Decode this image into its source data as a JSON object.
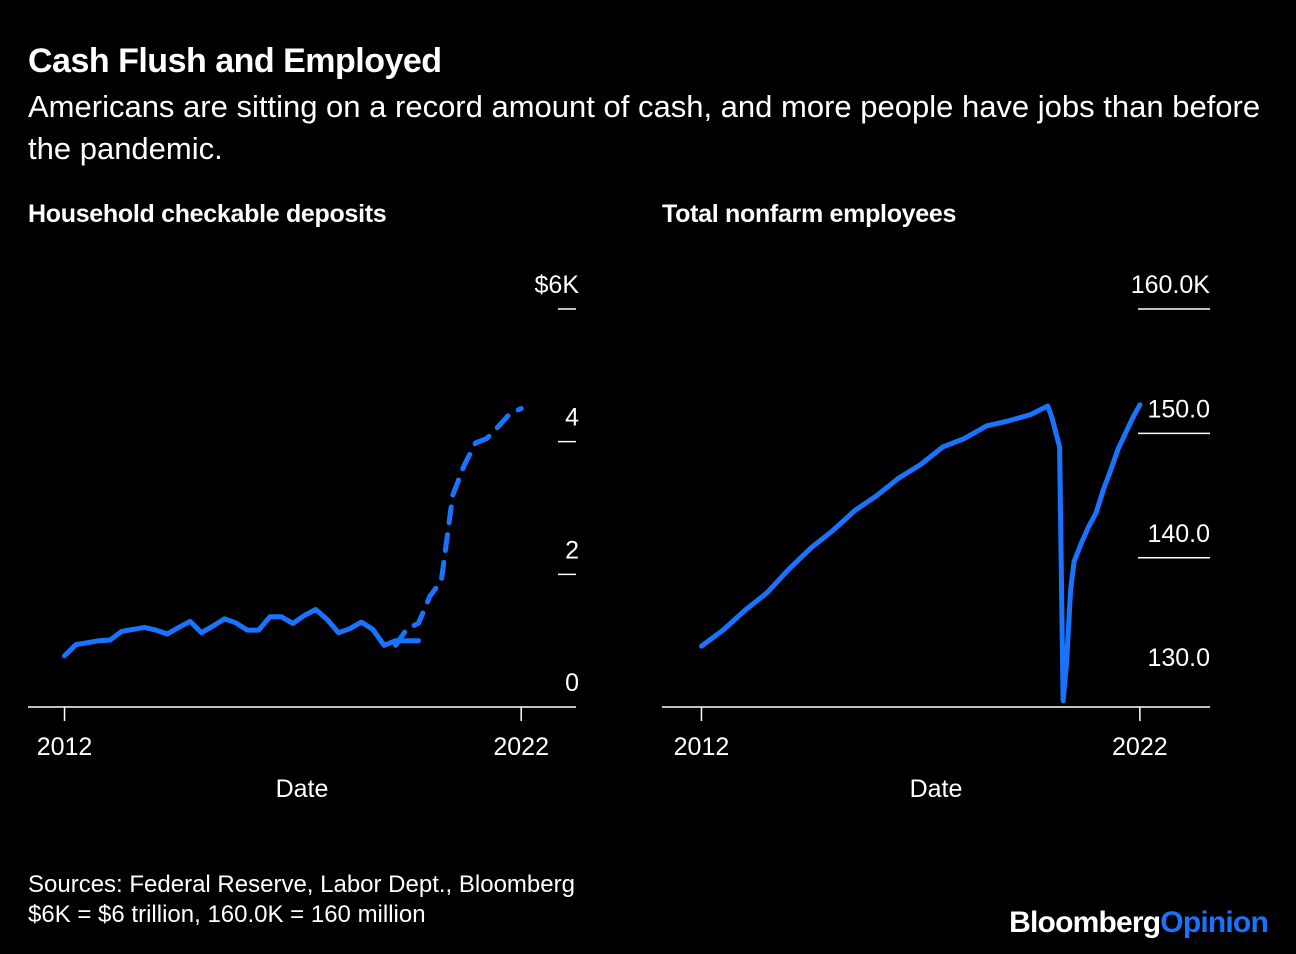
{
  "title": "Cash Flush and Employed",
  "subtitle": "Americans are sitting on a record amount of cash, and more people have jobs than before the pandemic.",
  "footer": {
    "sources": "Sources: Federal Reserve, Labor Dept., Bloomberg",
    "note": "$6K = $6 trillion, 160.0K = 160 million"
  },
  "brand": {
    "bloomberg": "Bloomberg",
    "opinion": "Opinion"
  },
  "colors": {
    "background": "#000000",
    "line": "#1a73ff",
    "text": "#ffffff"
  },
  "chart_data": [
    {
      "type": "line",
      "title": "Household checkable deposits",
      "xlabel": "Date",
      "ylabel": "",
      "xlim": [
        2011.2,
        2023.2
      ],
      "ylim": [
        0,
        6
      ],
      "x_ticks": [
        2012,
        2022
      ],
      "x_tick_labels": [
        "2012",
        "2022"
      ],
      "y_ticks": [
        0,
        2,
        4,
        6
      ],
      "y_tick_labels": [
        "0",
        "2",
        "4",
        "$6K"
      ],
      "grid": false,
      "series": [
        {
          "style": "solid",
          "x": [
            2012.0,
            2012.25,
            2012.5,
            2012.75,
            2013.0,
            2013.25,
            2013.5,
            2013.75,
            2014.0,
            2014.25,
            2014.5,
            2014.75,
            2015.0,
            2015.25,
            2015.5,
            2015.75,
            2016.0,
            2016.25,
            2016.5,
            2016.75,
            2017.0,
            2017.25,
            2017.5,
            2017.75,
            2018.0,
            2018.25,
            2018.5,
            2018.75,
            2019.0,
            2019.25,
            2019.5,
            2019.75
          ],
          "y": [
            0.77,
            0.94,
            0.97,
            1.0,
            1.01,
            1.14,
            1.17,
            1.2,
            1.16,
            1.1,
            1.2,
            1.29,
            1.12,
            1.22,
            1.33,
            1.27,
            1.16,
            1.16,
            1.36,
            1.36,
            1.26,
            1.38,
            1.47,
            1.32,
            1.12,
            1.18,
            1.28,
            1.17,
            0.93,
            1.0,
            1.0,
            1.0
          ]
        },
        {
          "style": "dashed",
          "x": [
            2019.25,
            2019.5,
            2019.75,
            2020.0,
            2020.25,
            2020.5,
            2020.75,
            2021.0,
            2021.25,
            2021.5,
            2021.75,
            2022.0
          ],
          "y": [
            0.93,
            1.18,
            1.26,
            1.67,
            1.9,
            3.19,
            3.64,
            3.98,
            4.05,
            4.23,
            4.42,
            4.5
          ]
        }
      ]
    },
    {
      "type": "line",
      "title": "Total nonfarm employees",
      "xlabel": "Date",
      "ylabel": "",
      "xlim": [
        2011.1,
        2023.6
      ],
      "ylim": [
        128,
        160
      ],
      "x_ticks": [
        2012,
        2022
      ],
      "x_tick_labels": [
        "2012",
        "2022"
      ],
      "y_ticks": [
        130,
        140,
        150,
        160
      ],
      "y_tick_labels": [
        "130.0",
        "140.0",
        "150.0",
        "160.0K"
      ],
      "grid": false,
      "series": [
        {
          "style": "solid",
          "x": [
            2012.0,
            2012.5,
            2013.0,
            2013.5,
            2014.0,
            2014.5,
            2015.0,
            2015.5,
            2016.0,
            2016.5,
            2017.0,
            2017.5,
            2018.0,
            2018.5,
            2019.0,
            2019.5,
            2019.9,
            2020.0,
            2020.17,
            2020.25,
            2020.33,
            2020.42,
            2020.5,
            2020.67,
            2020.83,
            2021.0,
            2021.17,
            2021.33,
            2021.5,
            2021.67,
            2021.83,
            2022.0
          ],
          "y": [
            132.9,
            134.2,
            135.8,
            137.2,
            139.1,
            140.8,
            142.2,
            143.8,
            145.0,
            146.4,
            147.5,
            148.9,
            149.6,
            150.6,
            151.0,
            151.5,
            152.2,
            151.2,
            148.9,
            128.5,
            131.6,
            137.4,
            139.7,
            141.2,
            142.5,
            143.6,
            145.5,
            147.0,
            148.7,
            150.0,
            151.2,
            152.3
          ]
        }
      ]
    }
  ]
}
